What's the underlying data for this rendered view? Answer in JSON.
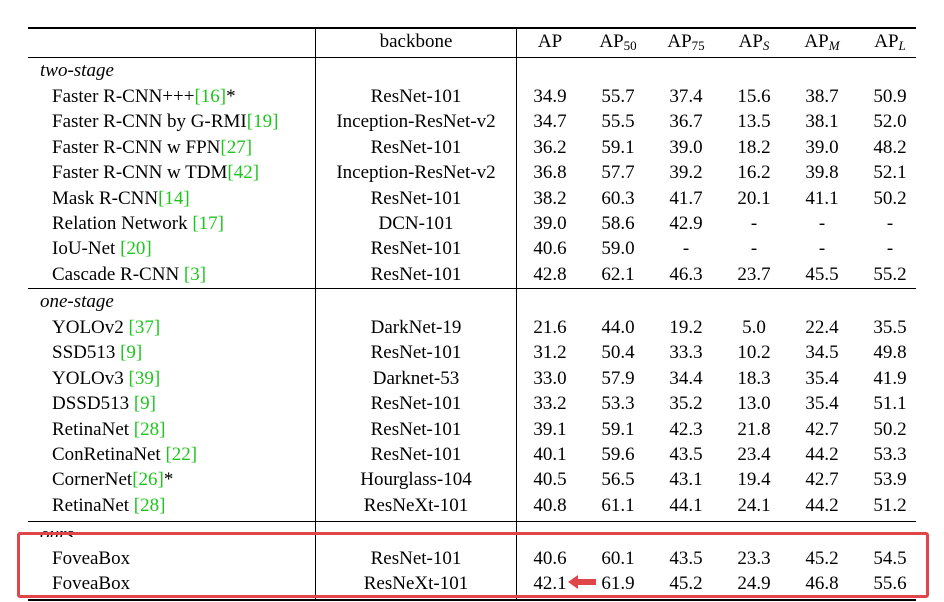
{
  "header": {
    "backbone": "backbone",
    "ap": "AP",
    "ap50_sub": "50",
    "ap75_sub": "75",
    "aps_sub": "S",
    "apm_sub": "M",
    "apl_sub": "L"
  },
  "groups": [
    {
      "label": "two-stage",
      "rows": [
        {
          "name": "Faster R-CNN+++",
          "cite": "[16]",
          "suffix": "*",
          "backbone": "ResNet-101",
          "vals": [
            "34.9",
            "55.7",
            "37.4",
            "15.6",
            "38.7",
            "50.9"
          ]
        },
        {
          "name": "Faster R-CNN by G-RMI",
          "cite": "[19]",
          "suffix": "",
          "backbone": "Inception-ResNet-v2",
          "vals": [
            "34.7",
            "55.5",
            "36.7",
            "13.5",
            "38.1",
            "52.0"
          ]
        },
        {
          "name": "Faster R-CNN w FPN",
          "cite": "[27]",
          "suffix": "",
          "backbone": "ResNet-101",
          "vals": [
            "36.2",
            "59.1",
            "39.0",
            "18.2",
            "39.0",
            "48.2"
          ]
        },
        {
          "name": "Faster R-CNN w TDM",
          "cite": "[42]",
          "suffix": "",
          "backbone": "Inception-ResNet-v2",
          "vals": [
            "36.8",
            "57.7",
            "39.2",
            "16.2",
            "39.8",
            "52.1"
          ]
        },
        {
          "name": "Mask R-CNN",
          "cite": "[14]",
          "suffix": "",
          "backbone": "ResNet-101",
          "vals": [
            "38.2",
            "60.3",
            "41.7",
            "20.1",
            "41.1",
            "50.2"
          ]
        },
        {
          "name": "Relation Network ",
          "cite": "[17]",
          "suffix": "",
          "backbone": "DCN-101",
          "vals": [
            "39.0",
            "58.6",
            "42.9",
            "-",
            "-",
            "-"
          ]
        },
        {
          "name": "IoU-Net ",
          "cite": "[20]",
          "suffix": "",
          "backbone": "ResNet-101",
          "vals": [
            "40.6",
            "59.0",
            "-",
            "-",
            "-",
            "-"
          ]
        },
        {
          "name": "Cascade R-CNN ",
          "cite": "[3]",
          "suffix": "",
          "backbone": "ResNet-101",
          "vals": [
            "42.8",
            "62.1",
            "46.3",
            "23.7",
            "45.5",
            "55.2"
          ]
        }
      ]
    },
    {
      "label": "one-stage",
      "rows": [
        {
          "name": "YOLOv2 ",
          "cite": "[37]",
          "suffix": "",
          "backbone": "DarkNet-19",
          "vals": [
            "21.6",
            "44.0",
            "19.2",
            "5.0",
            "22.4",
            "35.5"
          ]
        },
        {
          "name": "SSD513 ",
          "cite": "[9]",
          "suffix": "",
          "backbone": "ResNet-101",
          "vals": [
            "31.2",
            "50.4",
            "33.3",
            "10.2",
            "34.5",
            "49.8"
          ]
        },
        {
          "name": "YOLOv3 ",
          "cite": "[39]",
          "suffix": "",
          "backbone": "Darknet-53",
          "vals": [
            "33.0",
            "57.9",
            "34.4",
            "18.3",
            "35.4",
            "41.9"
          ]
        },
        {
          "name": "DSSD513 ",
          "cite": "[9]",
          "suffix": "",
          "backbone": "ResNet-101",
          "vals": [
            "33.2",
            "53.3",
            "35.2",
            "13.0",
            "35.4",
            "51.1"
          ]
        },
        {
          "name": "RetinaNet ",
          "cite": "[28]",
          "suffix": "",
          "backbone": "ResNet-101",
          "vals": [
            "39.1",
            "59.1",
            "42.3",
            "21.8",
            "42.7",
            "50.2"
          ]
        },
        {
          "name": "ConRetinaNet ",
          "cite": "[22]",
          "suffix": "",
          "backbone": "ResNet-101",
          "vals": [
            "40.1",
            "59.6",
            "43.5",
            "23.4",
            "44.2",
            "53.3"
          ]
        },
        {
          "name": "CornerNet",
          "cite": "[26]",
          "suffix": "*",
          "backbone": "Hourglass-104",
          "vals": [
            "40.5",
            "56.5",
            "43.1",
            "19.4",
            "42.7",
            "53.9"
          ]
        },
        {
          "name": "RetinaNet ",
          "cite": "[28]",
          "suffix": "",
          "backbone": "ResNeXt-101",
          "vals": [
            "40.8",
            "61.1",
            "44.1",
            "24.1",
            "44.2",
            "51.2"
          ]
        }
      ]
    },
    {
      "label": "ours",
      "rows": [
        {
          "name": "FoveaBox",
          "cite": "",
          "suffix": "",
          "backbone": "ResNet-101",
          "vals": [
            "40.6",
            "60.1",
            "43.5",
            "23.3",
            "45.2",
            "54.5"
          ]
        },
        {
          "name": "FoveaBox",
          "cite": "",
          "suffix": "",
          "backbone": "ResNeXt-101",
          "vals": [
            "42.1",
            "61.9",
            "45.2",
            "24.9",
            "46.8",
            "55.6"
          ]
        }
      ]
    }
  ],
  "colors": {
    "citation": "#1fc51f",
    "highlight_box": "#e0454a",
    "arrow": "#e0454a"
  }
}
